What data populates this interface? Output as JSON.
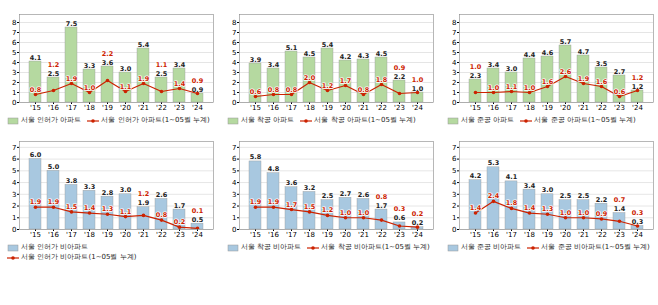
{
  "chart_data": [
    {
      "type": "bar",
      "categories": [
        "'15",
        "'16",
        "'17",
        "'18",
        "'19",
        "'20",
        "'21",
        "'22",
        "'23",
        "'24"
      ],
      "series": [
        {
          "name": "서울 인허가 아파트",
          "type": "bar",
          "color": "#b5d9a0",
          "values": [
            4.1,
            2.5,
            7.5,
            3.3,
            3.6,
            3.0,
            5.4,
            2.5,
            3.4,
            0.9
          ]
        },
        {
          "name": "서울 인허가 아파트(1~05월 누계)",
          "type": "line",
          "color": "#cc2200",
          "marker": "circle",
          "values": [
            0.8,
            1.2,
            1.9,
            1.0,
            2.2,
            1.1,
            1.9,
            1.1,
            1.4,
            0.9
          ]
        }
      ],
      "ylim": [
        0,
        8.8
      ],
      "yticks": [
        0,
        1,
        2,
        3,
        4,
        5,
        6,
        7,
        8
      ],
      "grid": true,
      "legend": "bottom",
      "data_labels": true
    },
    {
      "type": "bar",
      "categories": [
        "'15",
        "'16",
        "'17",
        "'18",
        "'19",
        "'20",
        "'21",
        "'22",
        "'23",
        "'24"
      ],
      "series": [
        {
          "name": "서울 착공 아파트",
          "type": "bar",
          "color": "#b5d9a0",
          "values": [
            3.9,
            3.4,
            5.1,
            4.5,
            5.4,
            4.2,
            4.3,
            4.5,
            2.2,
            1.0
          ]
        },
        {
          "name": "서울 착공 아파트(1~05월 누계)",
          "type": "line",
          "color": "#cc2200",
          "marker": "circle",
          "values": [
            0.6,
            0.8,
            0.8,
            2.0,
            1.2,
            1.7,
            0.8,
            1.8,
            0.9,
            1.0
          ]
        }
      ],
      "ylim": [
        0,
        8.8
      ],
      "yticks": [
        0,
        1,
        2,
        3,
        4,
        5,
        6,
        7,
        8
      ],
      "grid": true,
      "legend": "bottom",
      "data_labels": true
    },
    {
      "type": "bar",
      "categories": [
        "'15",
        "'16",
        "'17",
        "'18",
        "'19",
        "'20",
        "'21",
        "'22",
        "'23",
        "'24"
      ],
      "series": [
        {
          "name": "서울 준공 아파트",
          "type": "bar",
          "color": "#b5d9a0",
          "values": [
            2.3,
            3.4,
            3.0,
            4.4,
            4.6,
            5.7,
            4.7,
            3.5,
            2.7,
            1.2
          ]
        },
        {
          "name": "서울 준공 아파트(1~05월 누계)",
          "type": "line",
          "color": "#cc2200",
          "marker": "circle",
          "values": [
            1.0,
            1.0,
            1.1,
            1.0,
            1.6,
            2.6,
            1.9,
            1.6,
            0.6,
            1.2
          ]
        }
      ],
      "ylim": [
        0,
        8.8
      ],
      "yticks": [
        0,
        1,
        2,
        3,
        4,
        5,
        6,
        7,
        8
      ],
      "grid": true,
      "legend": "bottom",
      "data_labels": true
    },
    {
      "type": "bar",
      "categories": [
        "'15",
        "'16",
        "'17",
        "'18",
        "'19",
        "'20",
        "'21",
        "'22",
        "'23",
        "'24"
      ],
      "series": [
        {
          "name": "서울 인허가 비아파트",
          "type": "bar",
          "color": "#a8c8e0",
          "values": [
            6.0,
            5.0,
            3.8,
            3.3,
            2.8,
            3.0,
            1.9,
            2.6,
            1.7,
            0.5
          ]
        },
        {
          "name": "서울 인허가 비아파트(1~05월 누계)",
          "type": "line",
          "color": "#cc2200",
          "marker": "circle",
          "values": [
            1.9,
            1.9,
            1.5,
            1.4,
            1.3,
            1.1,
            1.2,
            0.8,
            0.2,
            0.1
          ]
        }
      ],
      "ylim": [
        0,
        7.5
      ],
      "yticks": [
        0,
        1,
        2,
        3,
        4,
        5,
        6,
        7
      ],
      "grid": true,
      "legend": "bottom",
      "data_labels": true
    },
    {
      "type": "bar",
      "categories": [
        "'15",
        "'16",
        "'17",
        "'18",
        "'19",
        "'20",
        "'21",
        "'22",
        "'23",
        "'24"
      ],
      "series": [
        {
          "name": "서울 착공 비아파트",
          "type": "bar",
          "color": "#a8c8e0",
          "values": [
            5.8,
            4.8,
            3.6,
            3.2,
            2.5,
            2.7,
            2.6,
            1.7,
            0.6,
            0.2
          ]
        },
        {
          "name": "서울 착공 비아파트(1~05월 누계)",
          "type": "line",
          "color": "#cc2200",
          "marker": "circle",
          "values": [
            1.9,
            1.9,
            1.7,
            1.5,
            1.2,
            1.0,
            1.0,
            0.8,
            0.3,
            0.2
          ]
        }
      ],
      "ylim": [
        0,
        7.5
      ],
      "yticks": [
        0,
        1,
        2,
        3,
        4,
        5,
        6,
        7
      ],
      "grid": true,
      "legend": "bottom",
      "data_labels": true
    },
    {
      "type": "bar",
      "categories": [
        "'15",
        "'16",
        "'17",
        "'18",
        "'19",
        "'20",
        "'21",
        "'22",
        "'23",
        "'24"
      ],
      "series": [
        {
          "name": "서울 준공 비아파트",
          "type": "bar",
          "color": "#a8c8e0",
          "values": [
            4.2,
            5.3,
            4.1,
            3.4,
            3.0,
            2.5,
            2.5,
            2.2,
            1.4,
            0.3
          ]
        },
        {
          "name": "서울 준공 비아파트(1~05월 누계)",
          "type": "line",
          "color": "#cc2200",
          "marker": "circle",
          "values": [
            1.4,
            2.4,
            1.8,
            1.4,
            1.3,
            1.0,
            1.0,
            0.9,
            0.7,
            0.3
          ]
        }
      ],
      "ylim": [
        0,
        7.5
      ],
      "yticks": [
        0,
        1,
        2,
        3,
        4,
        5,
        6,
        7
      ],
      "grid": true,
      "legend": "bottom",
      "data_labels": true
    }
  ]
}
